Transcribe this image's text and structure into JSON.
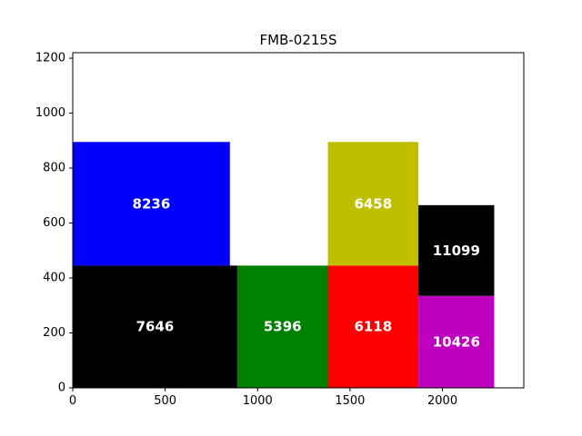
{
  "chart_data": {
    "type": "treemap-rects",
    "title": "FMB-0215S",
    "xlim": [
      0,
      2440
    ],
    "ylim": [
      0,
      1220
    ],
    "xticks": [
      0,
      500,
      1000,
      1500,
      2000
    ],
    "yticks": [
      0,
      200,
      400,
      600,
      800,
      1000,
      1200
    ],
    "rects": [
      {
        "label": "7646",
        "x": 0,
        "y": 0,
        "w": 890,
        "h": 445,
        "color": "#000000"
      },
      {
        "label": "8236",
        "x": 0,
        "y": 445,
        "w": 850,
        "h": 450,
        "color": "#0000ff"
      },
      {
        "label": "5396",
        "x": 890,
        "y": 0,
        "w": 490,
        "h": 445,
        "color": "#008000"
      },
      {
        "label": "6118",
        "x": 1380,
        "y": 0,
        "w": 490,
        "h": 445,
        "color": "#ff0000"
      },
      {
        "label": "6458",
        "x": 1380,
        "y": 445,
        "w": 490,
        "h": 450,
        "color": "#bfbf00"
      },
      {
        "label": "10426",
        "x": 1870,
        "y": 0,
        "w": 410,
        "h": 335,
        "color": "#bf00bf"
      },
      {
        "label": "11099",
        "x": 1870,
        "y": 335,
        "w": 410,
        "h": 330,
        "color": "#000000"
      }
    ]
  }
}
